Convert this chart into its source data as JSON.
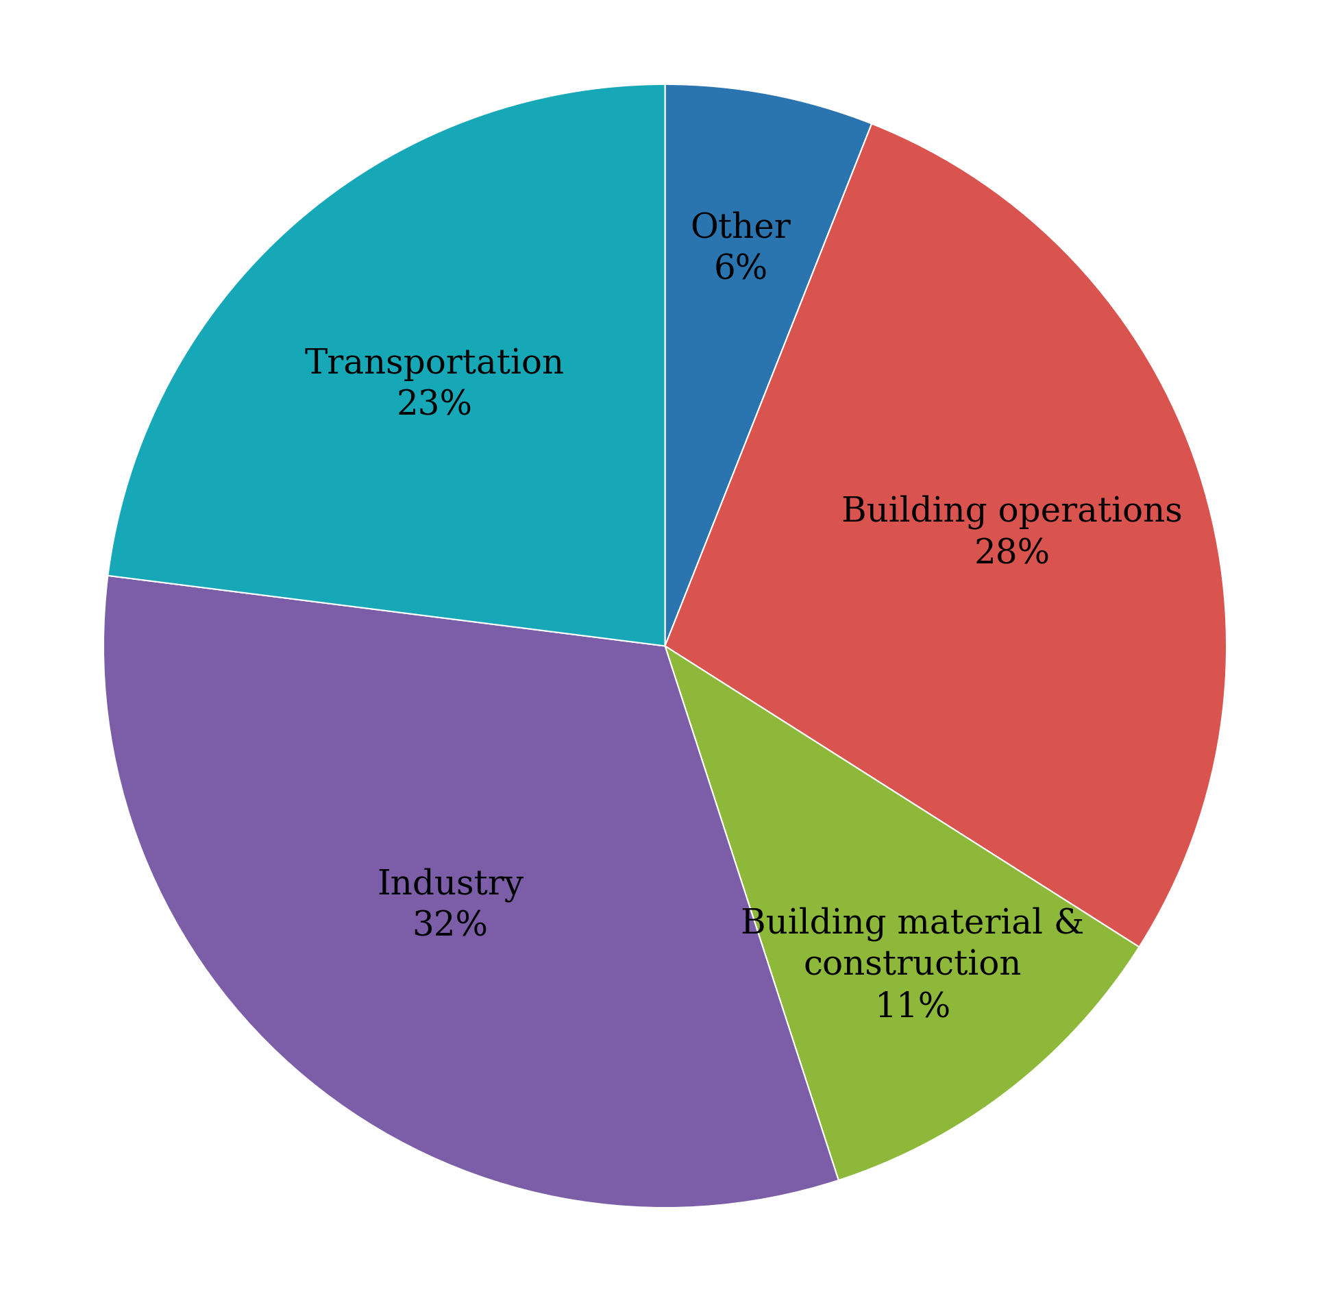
{
  "labels": [
    "Other",
    "Building operations",
    "Building material &\nconstruction",
    "Industry",
    "Transportation"
  ],
  "values": [
    6,
    28,
    11,
    32,
    23
  ],
  "colors": [
    "#2a75b0",
    "#d9534f",
    "#8db83a",
    "#7b5ea7",
    "#17a8b8"
  ],
  "label_lines": [
    [
      "Other",
      "6%"
    ],
    [
      "Building operations",
      "28%"
    ],
    [
      "Building material &",
      "construction",
      "11%"
    ],
    [
      "Industry",
      "32%"
    ],
    [
      "Transportation",
      "23%"
    ]
  ],
  "label_fontsize": 36,
  "startangle": 90,
  "background_color": "#ffffff",
  "label_radii": [
    0.72,
    0.65,
    0.72,
    0.6,
    0.62
  ]
}
